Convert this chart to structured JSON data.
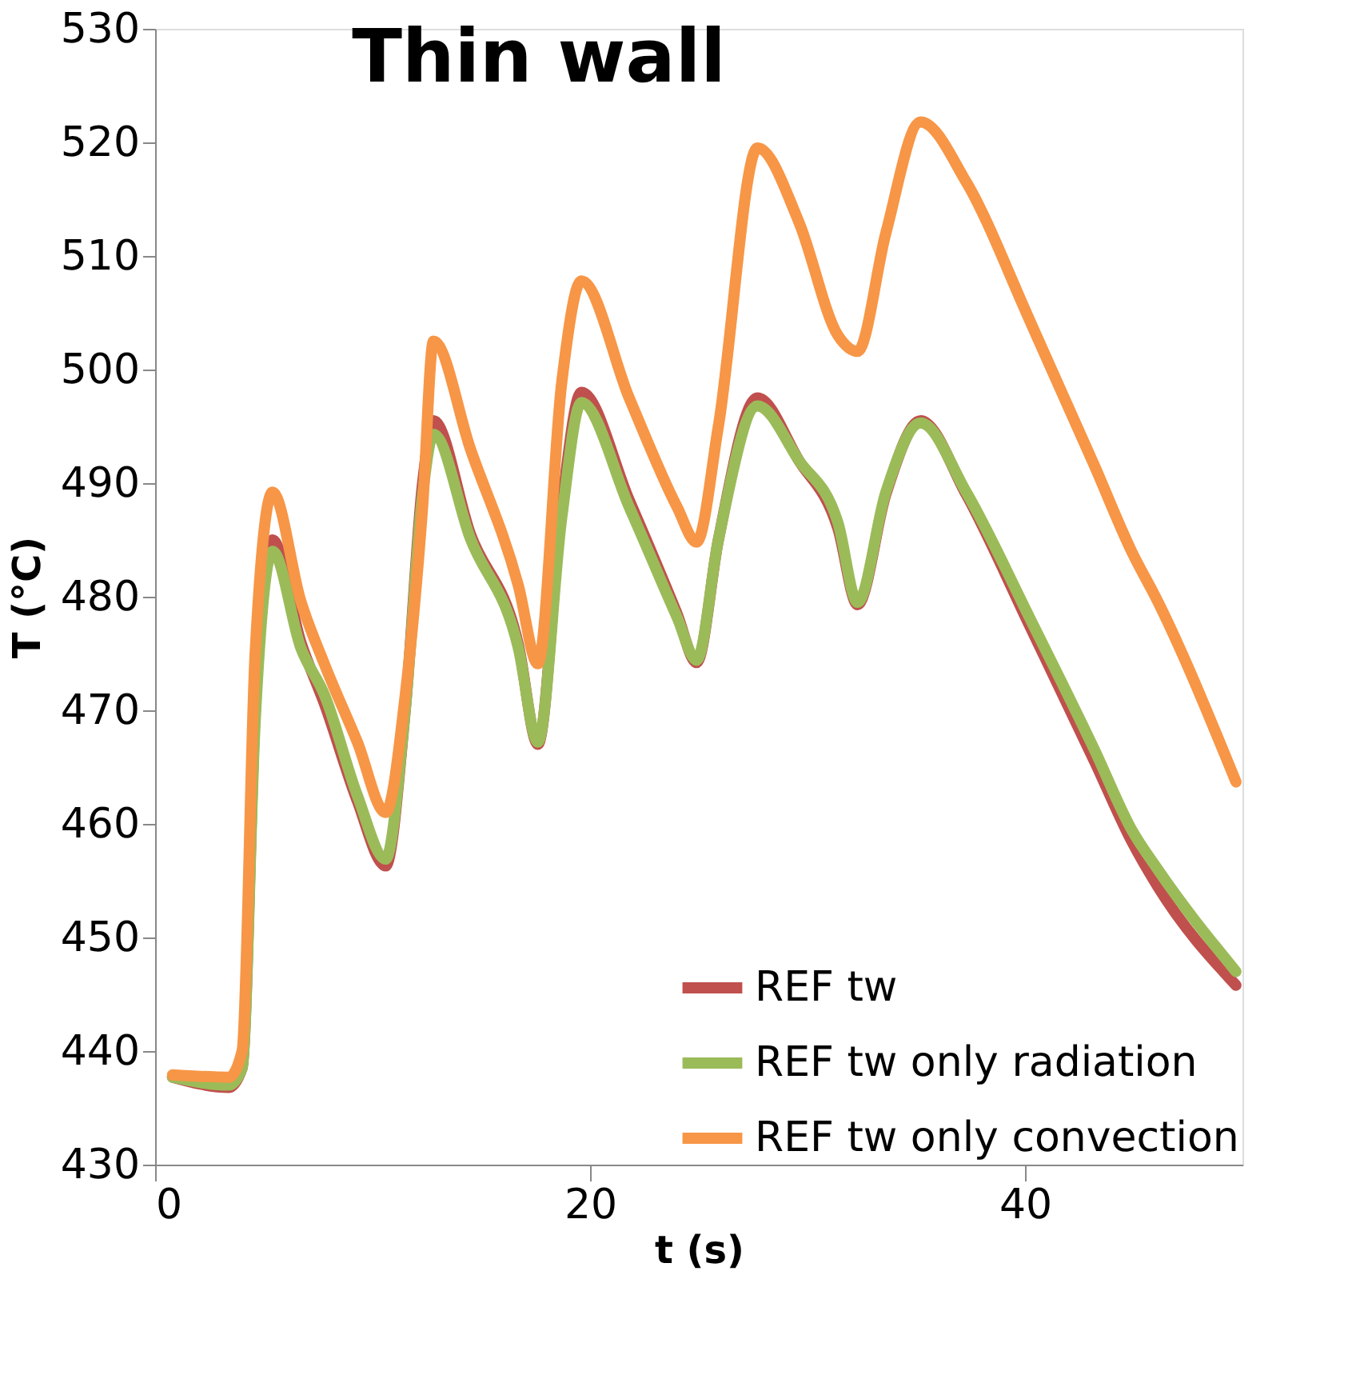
{
  "chart_data": {
    "type": "line",
    "title": "Thin wall",
    "xlabel": "t (s)",
    "ylabel": "T (°C)",
    "xlim": [
      0,
      50
    ],
    "xticks": [
      0,
      20,
      40
    ],
    "ylim": [
      430,
      530
    ],
    "yticks": [
      430,
      440,
      450,
      460,
      470,
      480,
      490,
      500,
      510,
      520,
      530
    ],
    "grid": false,
    "legend": "bottom right",
    "marker": "none",
    "line_style": "solid",
    "x": [
      0.8,
      3.4,
      4.0,
      4.6,
      5.4,
      6.7,
      7.8,
      9.3,
      10.6,
      11.5,
      12.3,
      12.8,
      14.5,
      16.7,
      17.6,
      18.7,
      19.6,
      21.8,
      24.0,
      24.9,
      25.9,
      27.7,
      29.6,
      31.4,
      32.3,
      33.6,
      35.2,
      37.3,
      40.2,
      43.2,
      44.9,
      46.1,
      49.7
    ],
    "series": [
      {
        "name": "REF tw",
        "color": "#c0504d",
        "values": [
          437.7,
          436.8,
          438.5,
          470,
          485,
          476,
          470.5,
          462,
          456.3,
          470,
          490,
          495.5,
          485.5,
          475.8,
          467,
          488,
          498,
          488.5,
          478.5,
          474.2,
          485,
          497.5,
          492,
          486,
          479.3,
          489,
          495.5,
          489,
          477.5,
          465.5,
          458.5,
          454.5,
          445.8
        ]
      },
      {
        "name": "REF tw only radiation",
        "color": "#9bbb59",
        "values": [
          437.7,
          437,
          438.5,
          469,
          484,
          475.5,
          471.3,
          462.5,
          456.9,
          470,
          489,
          494.3,
          485.1,
          475.5,
          467.2,
          487,
          497.1,
          487.9,
          478.2,
          474.4,
          485,
          496.8,
          492,
          486.5,
          479.5,
          489.2,
          495.3,
          489.2,
          478.2,
          466.5,
          459.5,
          456,
          447
        ]
      },
      {
        "name": "REF tw only convection",
        "color": "#f79646",
        "values": [
          437.9,
          437.7,
          440,
          475,
          489.2,
          479.6,
          474,
          467.2,
          461,
          471.3,
          487.9,
          502.5,
          493,
          481,
          474.1,
          498.9,
          507.8,
          497.5,
          487.9,
          484.8,
          495,
          519.5,
          513,
          503,
          501.6,
          512,
          521.8,
          516.5,
          504.4,
          491.5,
          484,
          479.6,
          463.7
        ]
      }
    ]
  }
}
